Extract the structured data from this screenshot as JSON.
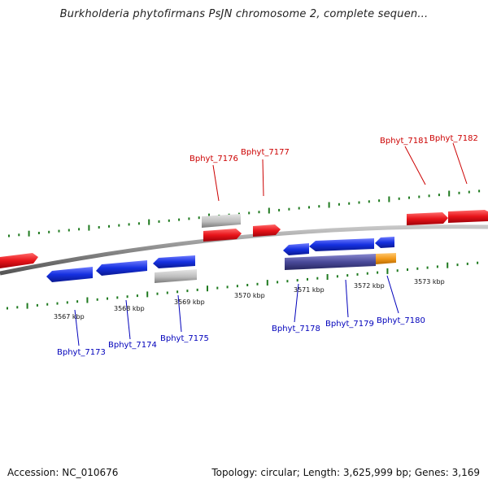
{
  "title": "Burkholderia phytofirmans PsJN chromosome 2, complete sequen...",
  "footer": {
    "accession": "Accession: NC_010676",
    "summary": "Topology: circular; Length: 3,625,999 bp; Genes: 3,169"
  },
  "colors": {
    "backbone": "#8a8a8a",
    "tick": "#1f7a1f",
    "forward_gene": "#e8141a",
    "reverse_gene": "#1530e0",
    "rna_gray": "#b8b8b8",
    "feature_purple": "#4a4a9a",
    "feature_orange": "#f39a1a",
    "forward_label": "#cc0000",
    "reverse_label": "#0000bb"
  },
  "scale": {
    "unit": "kbp",
    "ticks": [
      {
        "kbp": 3567,
        "label": "3567 kbp"
      },
      {
        "kbp": 3568,
        "label": "3568 kbp"
      },
      {
        "kbp": 3569,
        "label": "3569 kbp"
      },
      {
        "kbp": 3570,
        "label": "3570 kbp"
      },
      {
        "kbp": 3571,
        "label": "3571 kbp"
      },
      {
        "kbp": 3572,
        "label": "3572 kbp"
      },
      {
        "kbp": 3573,
        "label": "3573 kbp"
      }
    ]
  },
  "forward_labels": [
    "Bphyt_7176",
    "Bphyt_7177",
    "Bphyt_7181",
    "Bphyt_7182"
  ],
  "reverse_labels": [
    "Bphyt_7173",
    "Bphyt_7174",
    "Bphyt_7175",
    "Bphyt_7178",
    "Bphyt_7179",
    "Bphyt_7180"
  ]
}
